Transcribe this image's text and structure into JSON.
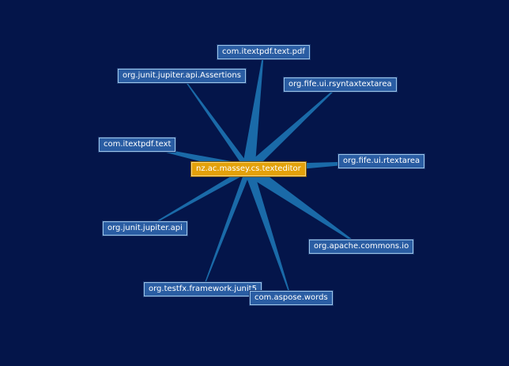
{
  "colors": {
    "background": "#04154a",
    "edge": "#1a6aa8",
    "node_fill": "#2a5da3",
    "node_border": "#9ec4e8",
    "center_fill": "#e3a10a"
  },
  "graph": {
    "center": {
      "id": "center",
      "label": "nz.ac.massey.cs.texteditor"
    },
    "nodes": [
      {
        "id": "n1",
        "label": "com.itextpdf.text.pdf",
        "weight": 3
      },
      {
        "id": "n2",
        "label": "org.junit.jupiter.api.Assertions",
        "weight": 1
      },
      {
        "id": "n3",
        "label": "org.fife.ui.rsyntaxtextarea",
        "weight": 2
      },
      {
        "id": "n4",
        "label": "com.itextpdf.text",
        "weight": 2
      },
      {
        "id": "n5",
        "label": "org.fife.ui.rtextarea",
        "weight": 2
      },
      {
        "id": "n6",
        "label": "org.junit.jupiter.api",
        "weight": 1
      },
      {
        "id": "n7",
        "label": "org.apache.commons.io",
        "weight": 3
      },
      {
        "id": "n8",
        "label": "org.testfx.framework.junit5",
        "weight": 1
      },
      {
        "id": "n9",
        "label": "com.aspose.words",
        "weight": 2
      }
    ]
  }
}
